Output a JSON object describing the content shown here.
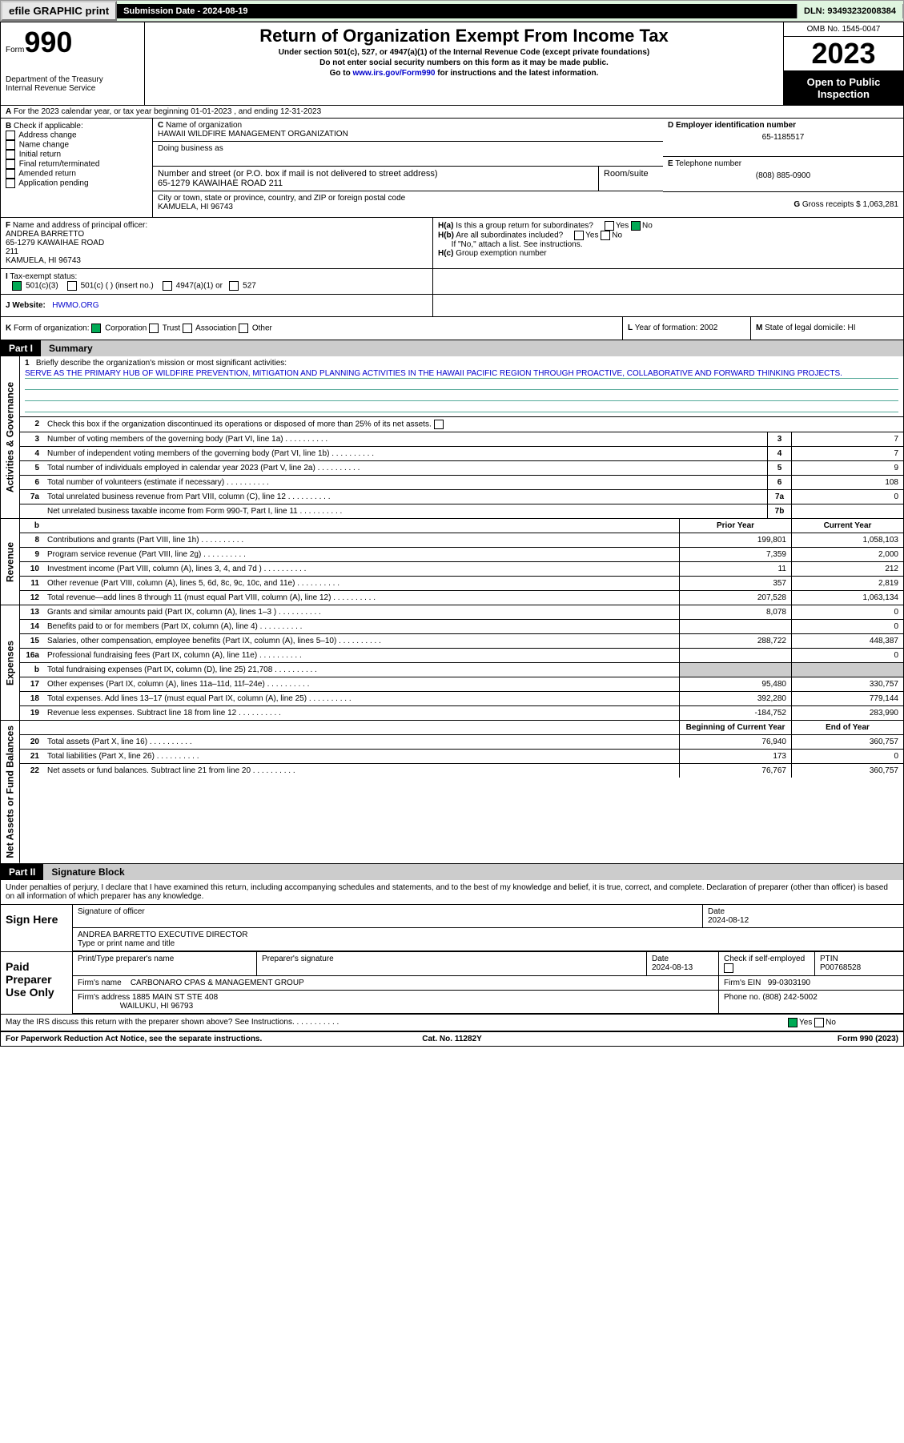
{
  "top": {
    "efile": "efile GRAPHIC print",
    "submission": "Submission Date - 2024-08-19",
    "dln": "DLN: 93493232008384"
  },
  "header": {
    "form_prefix": "Form",
    "form_num": "990",
    "dept": "Department of the Treasury",
    "irs": "Internal Revenue Service",
    "title": "Return of Organization Exempt From Income Tax",
    "sub1": "Under section 501(c), 527, or 4947(a)(1) of the Internal Revenue Code (except private foundations)",
    "sub2": "Do not enter social security numbers on this form as it may be made public.",
    "sub3_pre": "Go to ",
    "sub3_link": "www.irs.gov/Form990",
    "sub3_post": " for instructions and the latest information.",
    "omb": "OMB No. 1545-0047",
    "year": "2023",
    "open": "Open to Public Inspection"
  },
  "a": "For the 2023 calendar year, or tax year beginning 01-01-2023   , and ending 12-31-2023",
  "b": {
    "label": "Check if applicable:",
    "opts": [
      "Address change",
      "Name change",
      "Initial return",
      "Final return/terminated",
      "Amended return",
      "Application pending"
    ]
  },
  "c": {
    "name_label": "Name of organization",
    "name": "HAWAII WILDFIRE MANAGEMENT ORGANIZATION",
    "dba_label": "Doing business as",
    "addr_label": "Number and street (or P.O. box if mail is not delivered to street address)",
    "addr": "65-1279 KAWAIHAE ROAD 211",
    "room_label": "Room/suite",
    "city_label": "City or town, state or province, country, and ZIP or foreign postal code",
    "city": "KAMUELA, HI  96743"
  },
  "d": {
    "label": "Employer identification number",
    "val": "65-1185517"
  },
  "e": {
    "label": "Telephone number",
    "val": "(808) 885-0900"
  },
  "g": {
    "label": "Gross receipts $",
    "val": "1,063,281"
  },
  "f": {
    "label": "Name and address of principal officer:",
    "name": "ANDREA BARRETTO",
    "addr1": "65-1279 KAWAIHAE ROAD",
    "addr2": "211",
    "city": "KAMUELA, HI  96743"
  },
  "h": {
    "a_label": "Is this a group return for subordinates?",
    "b_label": "Are all subordinates included?",
    "note": "If \"No,\" attach a list. See instructions.",
    "c_label": "Group exemption number"
  },
  "i": {
    "label": "Tax-exempt status:",
    "opt1": "501(c)(3)",
    "opt2": "501(c) (  ) (insert no.)",
    "opt3": "4947(a)(1) or",
    "opt4": "527"
  },
  "j": {
    "label": "Website:",
    "val": "HWMO.ORG"
  },
  "k": {
    "label": "Form of organization:",
    "corp": "Corporation",
    "trust": "Trust",
    "assoc": "Association",
    "other": "Other"
  },
  "l": {
    "label": "Year of formation:",
    "val": "2002"
  },
  "m": {
    "label": "State of legal domicile:",
    "val": "HI"
  },
  "part1": {
    "label": "Part I",
    "title": "Summary"
  },
  "mission": {
    "label": "Briefly describe the organization's mission or most significant activities:",
    "text": "SERVE AS THE PRIMARY HUB OF WILDFIRE PREVENTION, MITIGATION AND PLANNING ACTIVITIES IN THE HAWAII PACIFIC REGION THROUGH PROACTIVE, COLLABORATIVE AND FORWARD THINKING PROJECTS."
  },
  "line2": "Check this box        if the organization discontinued its operations or disposed of more than 25% of its net assets.",
  "lines_gov": [
    {
      "n": "3",
      "t": "Number of voting members of the governing body (Part VI, line 1a)",
      "box": "3",
      "v": "7"
    },
    {
      "n": "4",
      "t": "Number of independent voting members of the governing body (Part VI, line 1b)",
      "box": "4",
      "v": "7"
    },
    {
      "n": "5",
      "t": "Total number of individuals employed in calendar year 2023 (Part V, line 2a)",
      "box": "5",
      "v": "9"
    },
    {
      "n": "6",
      "t": "Total number of volunteers (estimate if necessary)",
      "box": "6",
      "v": "108"
    },
    {
      "n": "7a",
      "t": "Total unrelated business revenue from Part VIII, column (C), line 12",
      "box": "7a",
      "v": "0"
    },
    {
      "n": "",
      "t": "Net unrelated business taxable income from Form 990-T, Part I, line 11",
      "box": "7b",
      "v": ""
    }
  ],
  "col_headers": {
    "b": "b",
    "prior": "Prior Year",
    "current": "Current Year"
  },
  "lines_rev": [
    {
      "n": "8",
      "t": "Contributions and grants (Part VIII, line 1h)",
      "p": "199,801",
      "c": "1,058,103"
    },
    {
      "n": "9",
      "t": "Program service revenue (Part VIII, line 2g)",
      "p": "7,359",
      "c": "2,000"
    },
    {
      "n": "10",
      "t": "Investment income (Part VIII, column (A), lines 3, 4, and 7d )",
      "p": "11",
      "c": "212"
    },
    {
      "n": "11",
      "t": "Other revenue (Part VIII, column (A), lines 5, 6d, 8c, 9c, 10c, and 11e)",
      "p": "357",
      "c": "2,819"
    },
    {
      "n": "12",
      "t": "Total revenue—add lines 8 through 11 (must equal Part VIII, column (A), line 12)",
      "p": "207,528",
      "c": "1,063,134"
    }
  ],
  "lines_exp": [
    {
      "n": "13",
      "t": "Grants and similar amounts paid (Part IX, column (A), lines 1–3 )",
      "p": "8,078",
      "c": "0"
    },
    {
      "n": "14",
      "t": "Benefits paid to or for members (Part IX, column (A), line 4)",
      "p": "",
      "c": "0"
    },
    {
      "n": "15",
      "t": "Salaries, other compensation, employee benefits (Part IX, column (A), lines 5–10)",
      "p": "288,722",
      "c": "448,387"
    },
    {
      "n": "16a",
      "t": "Professional fundraising fees (Part IX, column (A), line 11e)",
      "p": "",
      "c": "0"
    },
    {
      "n": "b",
      "t": "Total fundraising expenses (Part IX, column (D), line 25) 21,708",
      "p": "",
      "c": "",
      "shaded": true
    },
    {
      "n": "17",
      "t": "Other expenses (Part IX, column (A), lines 11a–11d, 11f–24e)",
      "p": "95,480",
      "c": "330,757"
    },
    {
      "n": "18",
      "t": "Total expenses. Add lines 13–17 (must equal Part IX, column (A), line 25)",
      "p": "392,280",
      "c": "779,144"
    },
    {
      "n": "19",
      "t": "Revenue less expenses. Subtract line 18 from line 12",
      "p": "-184,752",
      "c": "283,990"
    }
  ],
  "col_headers2": {
    "beg": "Beginning of Current Year",
    "end": "End of Year"
  },
  "lines_net": [
    {
      "n": "20",
      "t": "Total assets (Part X, line 16)",
      "p": "76,940",
      "c": "360,757"
    },
    {
      "n": "21",
      "t": "Total liabilities (Part X, line 26)",
      "p": "173",
      "c": "0"
    },
    {
      "n": "22",
      "t": "Net assets or fund balances. Subtract line 21 from line 20",
      "p": "76,767",
      "c": "360,757"
    }
  ],
  "part2": {
    "label": "Part II",
    "title": "Signature Block"
  },
  "perjury": "Under penalties of perjury, I declare that I have examined this return, including accompanying schedules and statements, and to the best of my knowledge and belief, it is true, correct, and complete. Declaration of preparer (other than officer) is based on all information of which preparer has any knowledge.",
  "sign": {
    "label": "Sign Here",
    "sig_label": "Signature of officer",
    "date_label": "Date",
    "date": "2024-08-12",
    "name": "ANDREA BARRETTO EXECUTIVE DIRECTOR",
    "name_label": "Type or print name and title"
  },
  "paid": {
    "label": "Paid Preparer Use Only",
    "name_label": "Print/Type preparer's name",
    "sig_label": "Preparer's signature",
    "date_label": "Date",
    "date": "2024-08-13",
    "check_label": "Check         if self-employed",
    "ptin_label": "PTIN",
    "ptin": "P00768528",
    "firm_name_label": "Firm's name",
    "firm_name": "CARBONARO CPAS & MANAGEMENT GROUP",
    "firm_ein_label": "Firm's EIN",
    "firm_ein": "99-0303190",
    "firm_addr_label": "Firm's address",
    "firm_addr": "1885 MAIN ST STE 408",
    "firm_city": "WAILUKU, HI  96793",
    "phone_label": "Phone no.",
    "phone": "(808) 242-5002"
  },
  "discuss": "May the IRS discuss this return with the preparer shown above? See Instructions.",
  "footer": {
    "left": "For Paperwork Reduction Act Notice, see the separate instructions.",
    "mid": "Cat. No. 11282Y",
    "right": "Form 990 (2023)"
  },
  "vert": {
    "gov": "Activities & Governance",
    "rev": "Revenue",
    "exp": "Expenses",
    "net": "Net Assets or Fund Balances"
  }
}
